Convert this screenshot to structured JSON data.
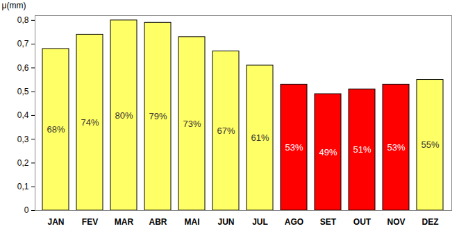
{
  "chart_data": {
    "type": "bar",
    "y_label": "μ(mm)",
    "categories": [
      "JAN",
      "FEV",
      "MAR",
      "ABR",
      "MAI",
      "JUN",
      "JUL",
      "AGO",
      "SET",
      "OUT",
      "NOV",
      "DEZ"
    ],
    "values": [
      0.68,
      0.74,
      0.8,
      0.79,
      0.73,
      0.67,
      0.61,
      0.53,
      0.49,
      0.51,
      0.53,
      0.55
    ],
    "value_labels": [
      "68%",
      "74%",
      "80%",
      "79%",
      "73%",
      "67%",
      "61%",
      "53%",
      "49%",
      "51%",
      "53%",
      "55%"
    ],
    "data_labels": true,
    "colors": [
      "#ffff66",
      "#ffff66",
      "#ffff66",
      "#ffff66",
      "#ffff66",
      "#ffff66",
      "#ffff66",
      "#ff0000",
      "#ff0000",
      "#ff0000",
      "#ff0000",
      "#ffff66"
    ],
    "ylim": [
      0,
      0.82
    ],
    "yticks": [
      0,
      {
        "value": 0.1,
        "label": "0,1"
      },
      {
        "value": 0.2,
        "label": "0,2"
      },
      {
        "value": 0.3,
        "label": "0,3"
      },
      {
        "value": 0.4,
        "label": "0,4"
      },
      {
        "value": 0.5,
        "label": "0,5"
      },
      {
        "value": 0.6,
        "label": "0,6"
      },
      {
        "value": 0.7,
        "label": "0,7"
      },
      {
        "value": 0.8,
        "label": "0,8"
      }
    ],
    "grid": false
  }
}
